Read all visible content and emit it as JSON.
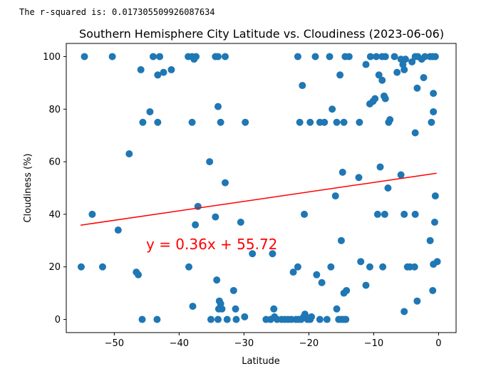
{
  "output": {
    "text": "The r-squared is: 0.017305509926087634"
  },
  "chart_data": {
    "type": "scatter",
    "title": "Southern Hemisphere City Latitude vs. Cloudiness (2023-06-06)",
    "xlabel": "Latitude",
    "ylabel": "Cloudiness (%)",
    "xlim": [
      -57.4,
      2.7
    ],
    "ylim": [
      -5,
      105
    ],
    "xticks": [
      -50,
      -40,
      -30,
      -20,
      -10,
      0
    ],
    "yticks": [
      0,
      20,
      40,
      60,
      80,
      100
    ],
    "tick_labels_x": [
      "−50",
      "−40",
      "−30",
      "−20",
      "−10",
      "0"
    ],
    "tick_labels_y": [
      "0",
      "20",
      "40",
      "60",
      "80",
      "100"
    ],
    "grid": false,
    "marker_color": "#1f77b4",
    "line_color": "#ff0000",
    "regression": {
      "slope": 0.36,
      "intercept": 55.72,
      "x_range": [
        -55.2,
        -0.3
      ],
      "equation": "y = 0.36x + 55.72"
    },
    "points": [
      [
        -54.6,
        100
      ],
      [
        -50.3,
        100
      ],
      [
        -45.9,
        95
      ],
      [
        -44.0,
        100
      ],
      [
        -43.0,
        100
      ],
      [
        -43.3,
        93
      ],
      [
        -42.4,
        94
      ],
      [
        -41.2,
        95
      ],
      [
        -38.6,
        100
      ],
      [
        -38.0,
        100
      ],
      [
        -37.7,
        99
      ],
      [
        -37.4,
        100
      ],
      [
        -34.4,
        100
      ],
      [
        -34.0,
        100
      ],
      [
        -32.9,
        100
      ],
      [
        -44.5,
        79
      ],
      [
        -45.6,
        75
      ],
      [
        -43.3,
        75
      ],
      [
        -38.0,
        75
      ],
      [
        -34.0,
        81
      ],
      [
        -33.6,
        75
      ],
      [
        -29.8,
        75
      ],
      [
        -47.7,
        63
      ],
      [
        -35.3,
        60
      ],
      [
        -32.9,
        52
      ],
      [
        -53.4,
        40
      ],
      [
        -37.1,
        43
      ],
      [
        -34.4,
        39
      ],
      [
        -37.5,
        36
      ],
      [
        -30.5,
        37
      ],
      [
        -49.4,
        34
      ],
      [
        -28.7,
        25
      ],
      [
        -25.6,
        25
      ],
      [
        -55.1,
        20
      ],
      [
        -51.8,
        20
      ],
      [
        -46.6,
        18
      ],
      [
        -46.3,
        17
      ],
      [
        -38.5,
        20
      ],
      [
        -37.9,
        5
      ],
      [
        -34.2,
        15
      ],
      [
        -33.8,
        7
      ],
      [
        -33.6,
        6
      ],
      [
        -33.9,
        4
      ],
      [
        -33.4,
        4
      ],
      [
        -31.6,
        11
      ],
      [
        -31.3,
        4
      ],
      [
        -45.7,
        0
      ],
      [
        -43.4,
        0
      ],
      [
        -35.1,
        0
      ],
      [
        -34.0,
        0
      ],
      [
        -32.6,
        0
      ],
      [
        -31.2,
        0
      ],
      [
        -29.9,
        1
      ],
      [
        -26.6,
        0
      ],
      [
        -25.9,
        0
      ],
      [
        -25.4,
        4
      ],
      [
        -25.3,
        1
      ],
      [
        -24.9,
        0
      ],
      [
        -24.2,
        0
      ],
      [
        -23.7,
        0
      ],
      [
        -23.2,
        0
      ],
      [
        -22.7,
        0
      ],
      [
        -22.0,
        0
      ],
      [
        -21.6,
        0
      ],
      [
        -21.2,
        0
      ],
      [
        -20.8,
        1
      ],
      [
        -20.6,
        2
      ],
      [
        -20.2,
        0
      ],
      [
        -19.8,
        0
      ],
      [
        -19.6,
        1
      ],
      [
        -18.3,
        0
      ],
      [
        -17.2,
        0
      ],
      [
        -15.7,
        4
      ],
      [
        -15.4,
        0
      ],
      [
        -15.0,
        0
      ],
      [
        -14.6,
        0
      ],
      [
        -14.3,
        0
      ],
      [
        -22.4,
        18
      ],
      [
        -21.7,
        20
      ],
      [
        -20.7,
        40
      ],
      [
        -18.8,
        17
      ],
      [
        -18.0,
        14
      ],
      [
        -16.6,
        20
      ],
      [
        -15.0,
        30
      ],
      [
        -14.6,
        10
      ],
      [
        -14.2,
        11
      ],
      [
        -15.9,
        47
      ],
      [
        -14.8,
        56
      ],
      [
        -12.3,
        54
      ],
      [
        -12.0,
        22
      ],
      [
        -11.2,
        13
      ],
      [
        -10.6,
        20
      ],
      [
        -21.7,
        100
      ],
      [
        -19.0,
        100
      ],
      [
        -16.8,
        100
      ],
      [
        -14.4,
        100
      ],
      [
        -13.8,
        100
      ],
      [
        -10.5,
        100
      ],
      [
        -9.6,
        100
      ],
      [
        -8.7,
        100
      ],
      [
        -8.2,
        100
      ],
      [
        -6.8,
        100
      ],
      [
        -5.8,
        99
      ],
      [
        -5.1,
        99
      ],
      [
        -3.6,
        100
      ],
      [
        -3.2,
        100
      ],
      [
        -2.1,
        100
      ],
      [
        -1.3,
        100
      ],
      [
        -0.9,
        100
      ],
      [
        -0.5,
        100
      ],
      [
        -15.2,
        93
      ],
      [
        -9.2,
        93
      ],
      [
        -8.7,
        91
      ],
      [
        -6.4,
        94
      ],
      [
        -5.3,
        95
      ],
      [
        -5.5,
        97
      ],
      [
        -4.1,
        98
      ],
      [
        -2.6,
        99
      ],
      [
        -11.2,
        97
      ],
      [
        -2.3,
        92
      ],
      [
        -21.0,
        89
      ],
      [
        -10.6,
        82
      ],
      [
        -10.1,
        83
      ],
      [
        -9.8,
        84
      ],
      [
        -8.4,
        85
      ],
      [
        -8.2,
        84
      ],
      [
        -7.7,
        75
      ],
      [
        -7.5,
        76
      ],
      [
        -3.3,
        88
      ],
      [
        -0.8,
        86
      ],
      [
        -0.8,
        79
      ],
      [
        -3.6,
        71
      ],
      [
        -1.1,
        75
      ],
      [
        -21.4,
        75
      ],
      [
        -19.8,
        75
      ],
      [
        -18.3,
        75
      ],
      [
        -17.6,
        75
      ],
      [
        -16.4,
        80
      ],
      [
        -15.7,
        75
      ],
      [
        -14.6,
        75
      ],
      [
        -12.2,
        75
      ],
      [
        -9.0,
        58
      ],
      [
        -7.8,
        50
      ],
      [
        -5.8,
        55
      ],
      [
        -9.4,
        40
      ],
      [
        -8.3,
        40
      ],
      [
        -5.3,
        40
      ],
      [
        -3.6,
        40
      ],
      [
        -0.5,
        47
      ],
      [
        -0.6,
        37
      ],
      [
        -1.3,
        30
      ],
      [
        -8.6,
        20
      ],
      [
        -4.8,
        20
      ],
      [
        -4.4,
        20
      ],
      [
        -3.7,
        20
      ],
      [
        -0.8,
        21
      ],
      [
        -0.2,
        22
      ],
      [
        -3.3,
        7
      ],
      [
        -5.3,
        3
      ],
      [
        -0.9,
        11
      ]
    ]
  }
}
